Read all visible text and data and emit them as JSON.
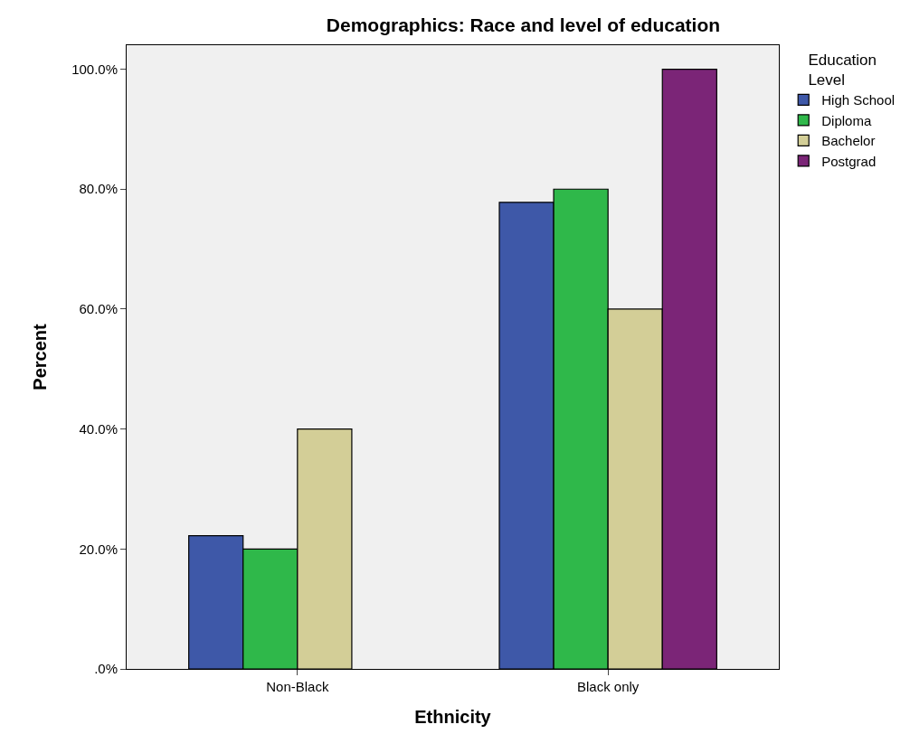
{
  "chart_data": {
    "type": "bar",
    "title": "Demographics: Race and level of education",
    "xlabel": "Ethnicity",
    "ylabel": "Percent",
    "legend_title": "Education Level",
    "categories": [
      "Non-Black",
      "Black only"
    ],
    "series": [
      {
        "name": "High School",
        "color": "#3e58a8",
        "values": [
          22.2,
          77.8
        ]
      },
      {
        "name": "Diploma",
        "color": "#2fb84a",
        "values": [
          20,
          80
        ]
      },
      {
        "name": "Bachelor",
        "color": "#d3ce97",
        "values": [
          40,
          60
        ]
      },
      {
        "name": "Postgrad",
        "color": "#7b2577",
        "values": [
          null,
          100
        ]
      }
    ],
    "ylim": [
      0,
      104
    ],
    "yticks": [
      {
        "value": 0,
        "label": ".0%"
      },
      {
        "value": 20,
        "label": "20.0%"
      },
      {
        "value": 40,
        "label": "40.0%"
      },
      {
        "value": 60,
        "label": "60.0%"
      },
      {
        "value": 80,
        "label": "80.0%"
      },
      {
        "value": 100,
        "label": "100.0%"
      }
    ],
    "grid": false,
    "legend": "top right"
  }
}
